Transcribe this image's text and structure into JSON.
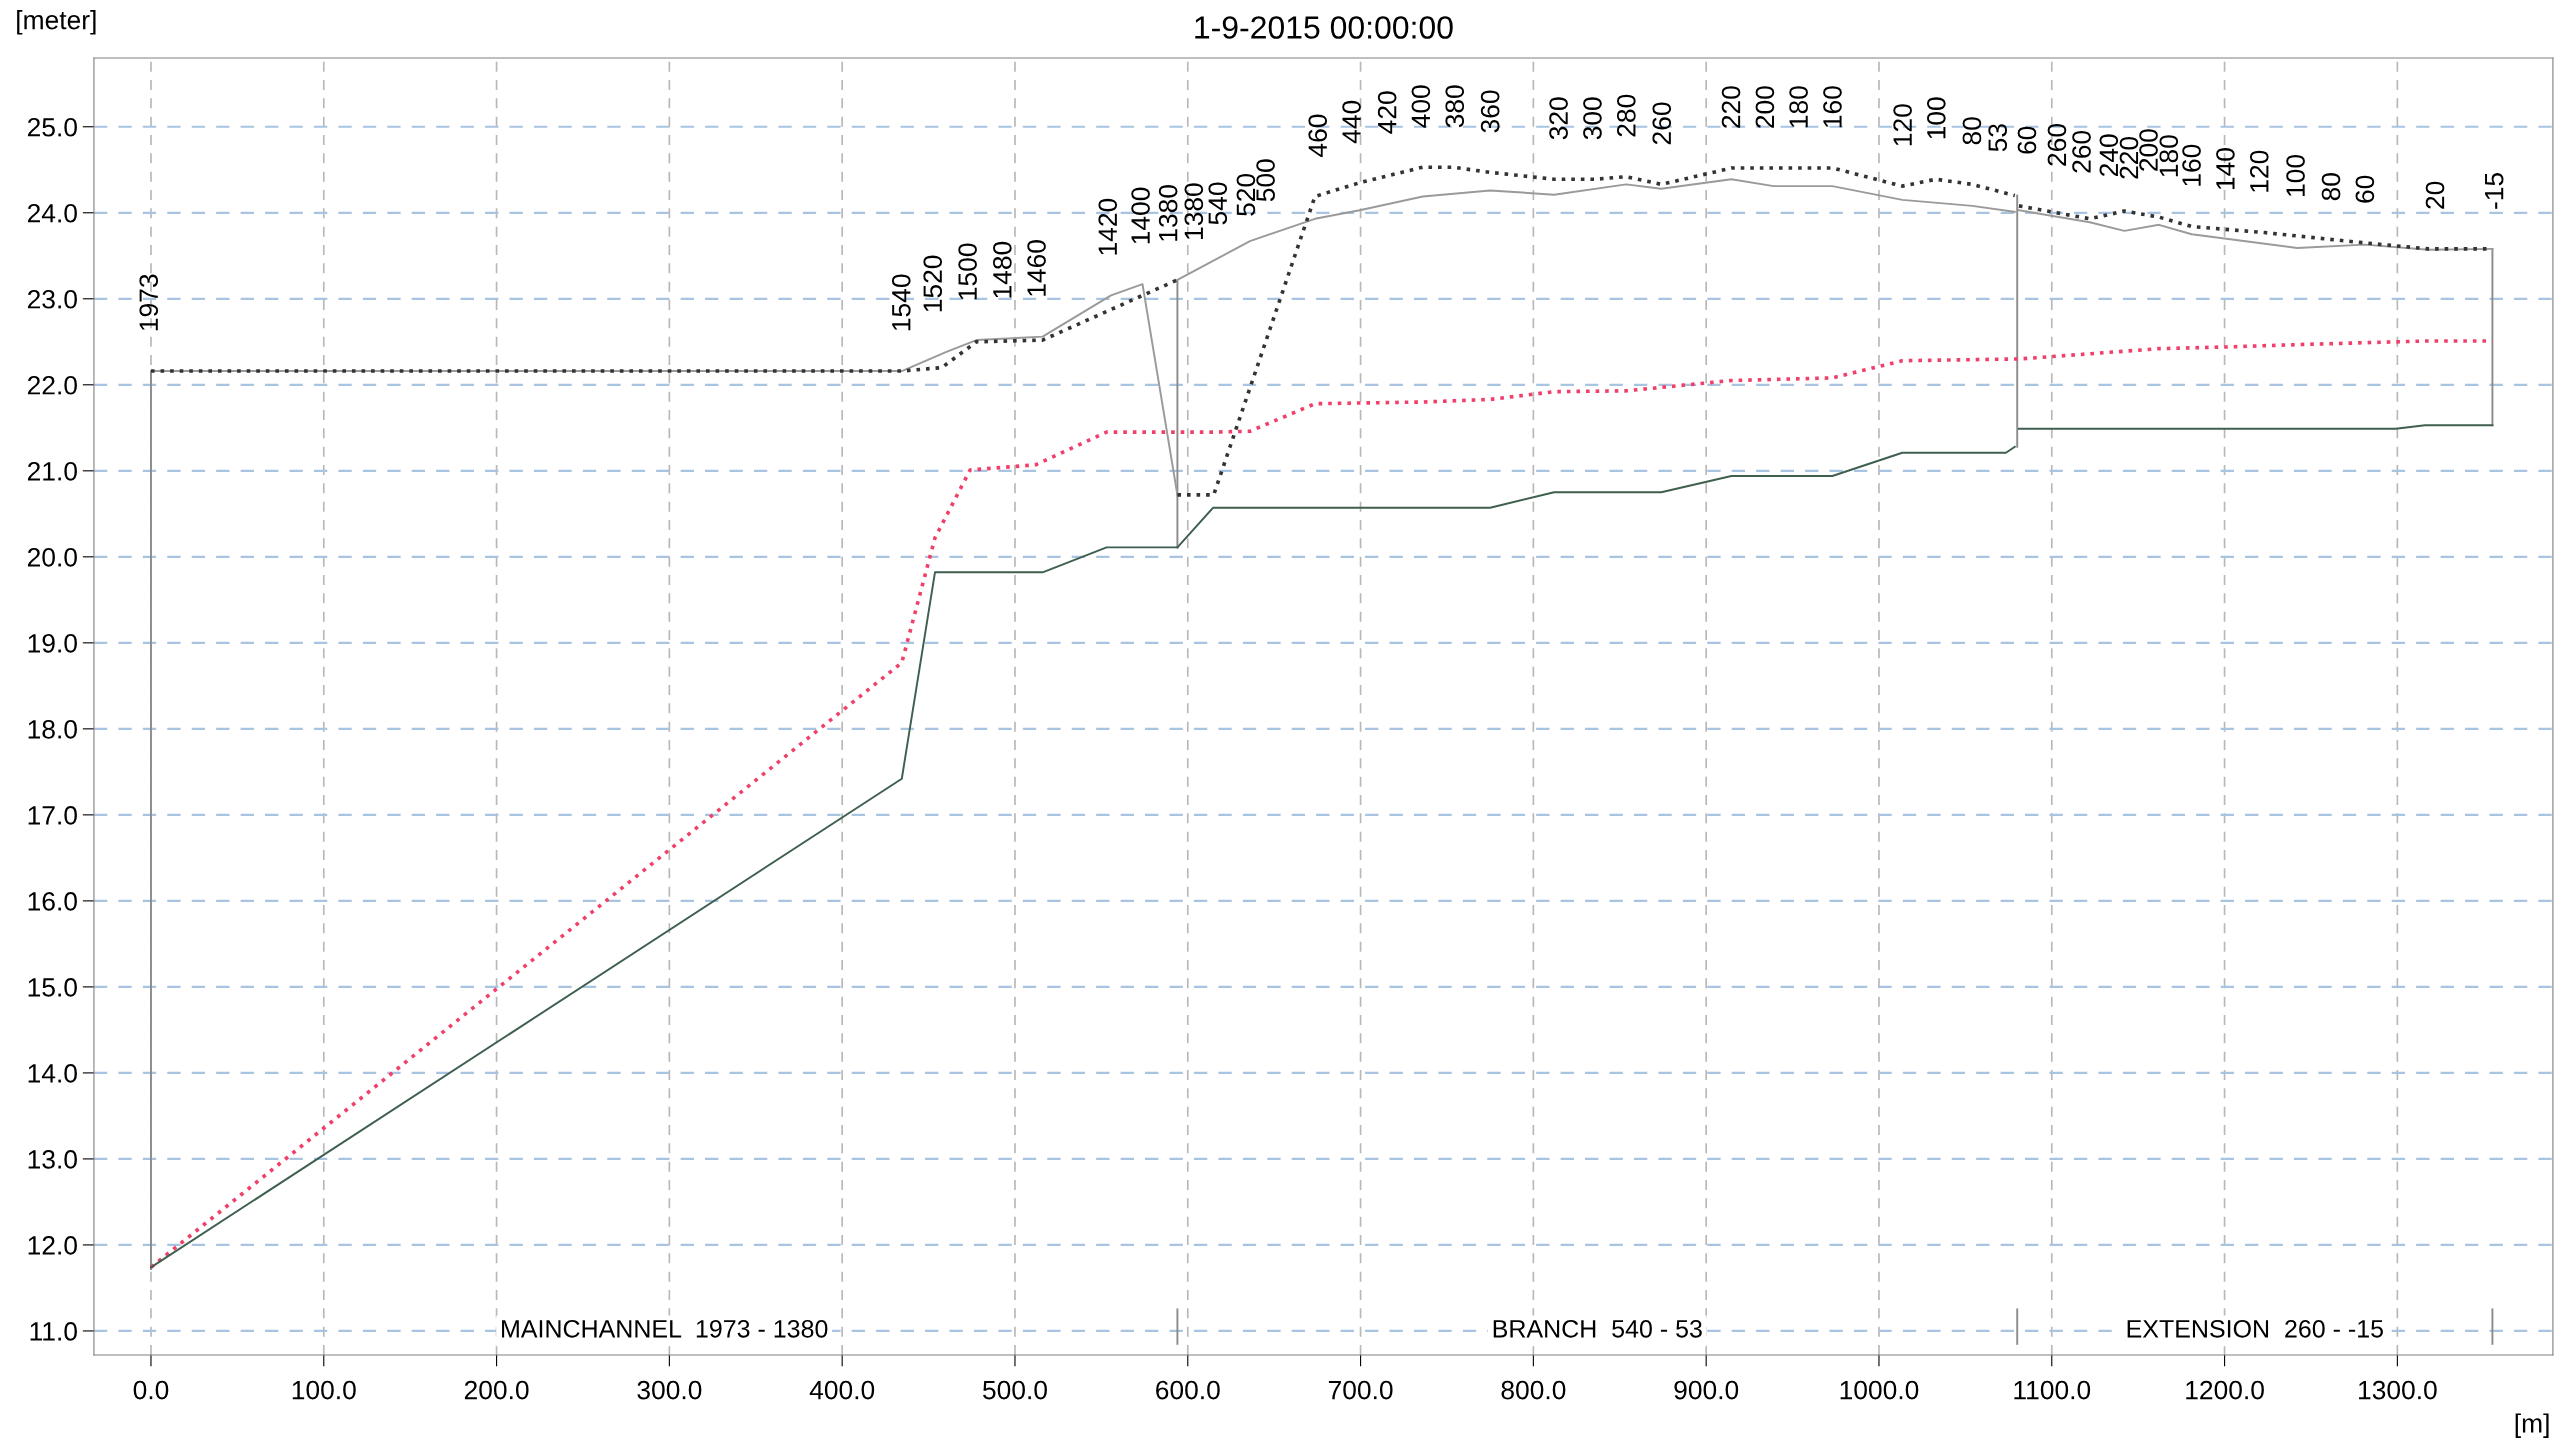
{
  "chart_data": {
    "type": "line",
    "title": "1-9-2015 00:00:00",
    "xlabel": "[m]",
    "ylabel": "[meter]",
    "xlim": [
      -33,
      1390
    ],
    "ylim": [
      10.72,
      25.8
    ],
    "xticks": [
      {
        "value": 0,
        "label": "0.0"
      },
      {
        "value": 100,
        "label": "100.0"
      },
      {
        "value": 200,
        "label": "200.0"
      },
      {
        "value": 300,
        "label": "300.0"
      },
      {
        "value": 400,
        "label": "400.0"
      },
      {
        "value": 500,
        "label": "500.0"
      },
      {
        "value": 600,
        "label": "600.0"
      },
      {
        "value": 700,
        "label": "700.0"
      },
      {
        "value": 800,
        "label": "800.0"
      },
      {
        "value": 900,
        "label": "900.0"
      },
      {
        "value": 1000,
        "label": "1000.0"
      },
      {
        "value": 1100,
        "label": "1100.0"
      },
      {
        "value": 1200,
        "label": "1200.0"
      },
      {
        "value": 1300,
        "label": "1300.0"
      }
    ],
    "yticks": [
      {
        "value": 11,
        "label": "11.0"
      },
      {
        "value": 12,
        "label": "12.0"
      },
      {
        "value": 13,
        "label": "13.0"
      },
      {
        "value": 14,
        "label": "14.0"
      },
      {
        "value": 15,
        "label": "15.0"
      },
      {
        "value": 16,
        "label": "16.0"
      },
      {
        "value": 17,
        "label": "17.0"
      },
      {
        "value": 18,
        "label": "18.0"
      },
      {
        "value": 19,
        "label": "19.0"
      },
      {
        "value": 20,
        "label": "20.0"
      },
      {
        "value": 21,
        "label": "21.0"
      },
      {
        "value": 22,
        "label": "22.0"
      },
      {
        "value": 23,
        "label": "23.0"
      },
      {
        "value": 24,
        "label": "24.0"
      },
      {
        "value": 25,
        "label": "25.0"
      }
    ],
    "grid": true,
    "marker": "none",
    "series": [
      {
        "color": "#8c8c8c",
        "line_style": "solid",
        "x": [
          0,
          0
        ],
        "values": [
          22.16,
          11.72
        ]
      },
      {
        "color": "#8c8c8c",
        "line_style": "solid",
        "x": [
          594,
          594
        ],
        "values": [
          23.22,
          20.11
        ]
      },
      {
        "color": "#8c8c8c",
        "line_style": "solid",
        "x": [
          1080,
          1080
        ],
        "values": [
          24.2,
          21.28
        ]
      },
      {
        "color": "#8c8c8c",
        "line_style": "solid",
        "x": [
          1355,
          1355
        ],
        "values": [
          23.58,
          21.53
        ]
      },
      {
        "color": "#8c8c8c",
        "line_style": "solid",
        "x": [
          594,
          594
        ],
        "values": [
          10.85,
          11.25
        ]
      },
      {
        "color": "#8c8c8c",
        "line_style": "solid",
        "x": [
          1080,
          1080
        ],
        "values": [
          10.85,
          11.25
        ]
      },
      {
        "color": "#8c8c8c",
        "line_style": "solid",
        "x": [
          1355,
          1355
        ],
        "values": [
          10.85,
          11.25
        ]
      },
      {
        "color": "#9a9a9a",
        "line_style": "solid",
        "x": [
          0,
          434.5,
          460,
          477.7,
          516,
          555.6,
          573.8,
          594
        ],
        "values": [
          22.16,
          22.16,
          22.38,
          22.52,
          22.56,
          23.04,
          23.17,
          20.72
        ]
      },
      {
        "color": "#9a9a9a",
        "line_style": "solid",
        "x": [
          594,
          636,
          673.6,
          699.5,
          736,
          775,
          812,
          853.7,
          874,
          914.6,
          939,
          973,
          1013.5,
          1054,
          1078.6
        ],
        "values": [
          23.22,
          23.67,
          23.93,
          24.03,
          24.19,
          24.26,
          24.21,
          24.33,
          24.28,
          24.39,
          24.31,
          24.31,
          24.15,
          24.08,
          24.01
        ]
      },
      {
        "color": "#9a9a9a",
        "line_style": "solid",
        "x": [
          1081,
          1122,
          1142,
          1162,
          1181,
          1242,
          1281,
          1318,
          1355
        ],
        "values": [
          24.03,
          23.89,
          23.79,
          23.86,
          23.75,
          23.59,
          23.63,
          23.57,
          23.58
        ]
      },
      {
        "color": "#333333",
        "line_style": "dotted",
        "x": [
          0,
          434.5,
          457.7,
          477.7,
          516,
          594
        ],
        "values": [
          22.16,
          22.16,
          22.2,
          22.5,
          22.52,
          23.22
        ]
      },
      {
        "color": "#333333",
        "line_style": "dotted",
        "x": [
          594,
          615,
          673.6,
          699.5,
          736,
          753.2,
          775,
          812,
          836,
          853.7,
          874,
          914.6,
          973.4,
          1013.5,
          1033,
          1054,
          1078.6
        ],
        "values": [
          20.72,
          20.72,
          24.19,
          24.35,
          24.53,
          24.53,
          24.47,
          24.39,
          24.39,
          24.42,
          24.33,
          24.52,
          24.52,
          24.31,
          24.39,
          24.33,
          24.2
        ]
      },
      {
        "color": "#333333",
        "line_style": "dotted",
        "x": [
          1081,
          1122,
          1142,
          1162,
          1181,
          1223,
          1281,
          1318,
          1355
        ],
        "values": [
          24.08,
          23.93,
          24.02,
          23.95,
          23.84,
          23.77,
          23.65,
          23.58,
          23.58
        ]
      },
      {
        "color": "#f0406a",
        "line_style": "dotted",
        "x": [
          0,
          434.5,
          453.7,
          474,
          512,
          553,
          594,
          615,
          636,
          673.6,
          736,
          775,
          812,
          853.7,
          874,
          914.6,
          973,
          1013.5,
          1078.6,
          1081,
          1162,
          1201,
          1247,
          1318,
          1355
        ],
        "values": [
          11.74,
          18.77,
          20.22,
          21.01,
          21.07,
          21.45,
          21.45,
          21.45,
          21.46,
          21.78,
          21.8,
          21.83,
          21.92,
          21.93,
          21.97,
          22.05,
          22.08,
          22.28,
          22.3,
          22.3,
          22.42,
          22.44,
          22.47,
          22.51,
          22.51
        ]
      },
      {
        "color": "#3f5f4f",
        "line_style": "solid",
        "x": [
          0,
          434.5,
          453.7,
          516,
          553,
          594
        ],
        "values": [
          11.74,
          17.42,
          19.82,
          19.82,
          20.11,
          20.11
        ]
      },
      {
        "color": "#3f5f4f",
        "line_style": "solid",
        "x": [
          594,
          614.6,
          636,
          775,
          812,
          874,
          914.6,
          973,
          1013.5,
          1073.5,
          1078.6
        ],
        "values": [
          20.11,
          20.57,
          20.57,
          20.57,
          20.75,
          20.75,
          20.94,
          20.94,
          21.21,
          21.21,
          21.28
        ]
      },
      {
        "color": "#3f5f4f",
        "line_style": "solid",
        "x": [
          1081,
          1299,
          1316,
          1355
        ],
        "values": [
          21.49,
          21.49,
          21.53,
          21.53
        ]
      }
    ],
    "annotations": [
      "MAINCHANNEL  1973 - 1380",
      "BRANCH  540 - 53",
      "EXTENSION  260 - -15",
      {
        "text": "1973",
        "x": 0,
        "y": 22.16
      },
      {
        "text": "1540",
        "x": 435.5,
        "y": 22.16
      },
      {
        "text": "1520",
        "x": 453.7,
        "y": 22.38
      },
      {
        "text": "1500",
        "x": 473.9,
        "y": 22.52
      },
      {
        "text": "1480",
        "x": 494,
        "y": 22.54
      },
      {
        "text": "1460",
        "x": 513.8,
        "y": 22.56
      },
      {
        "text": "1420",
        "x": 555,
        "y": 23.04
      },
      {
        "text": "1400",
        "x": 574,
        "y": 23.17
      },
      {
        "text": "1380",
        "x": 582.6,
        "y": 23.2
      },
      {
        "text": "1380",
        "x": 594,
        "y": 23.22
      },
      {
        "text": "540",
        "x": 608,
        "y": 23.4
      },
      {
        "text": "520",
        "x": 615.7,
        "y": 23.5
      },
      {
        "text": "500",
        "x": 636,
        "y": 23.67
      },
      {
        "text": "460",
        "x": 676.5,
        "y": 24.19
      },
      {
        "text": "440",
        "x": 696.1,
        "y": 24.35
      },
      {
        "text": "420",
        "x": 716.7,
        "y": 24.46
      },
      {
        "text": "400",
        "x": 736.2,
        "y": 24.53
      },
      {
        "text": "380",
        "x": 755.8,
        "y": 24.53
      },
      {
        "text": "360",
        "x": 776.3,
        "y": 24.47
      },
      {
        "text": "320",
        "x": 815.9,
        "y": 24.39
      },
      {
        "text": "300",
        "x": 835.5,
        "y": 24.39
      },
      {
        "text": "280",
        "x": 855.1,
        "y": 24.42
      },
      {
        "text": "260",
        "x": 875.6,
        "y": 24.33
      },
      {
        "text": "220",
        "x": 915.7,
        "y": 24.52
      },
      {
        "text": "200",
        "x": 935.3,
        "y": 24.52
      },
      {
        "text": "180",
        "x": 954.8,
        "y": 24.52
      },
      {
        "text": "160",
        "x": 974.4,
        "y": 24.52
      },
      {
        "text": "120",
        "x": 1015,
        "y": 24.31
      },
      {
        "text": "100",
        "x": 1034.5,
        "y": 24.39
      },
      {
        "text": "80",
        "x": 1055.1,
        "y": 24.33
      },
      {
        "text": "53",
        "x": 1070,
        "y": 24.25
      },
      {
        "text": "60",
        "x": 1076,
        "y": 24.22
      },
      {
        "text": "260",
        "x": 1081,
        "y": 24.08
      },
      {
        "text": "260",
        "x": 1094,
        "y": 24.0
      },
      {
        "text": "240",
        "x": 1103,
        "y": 23.96
      },
      {
        "text": "220",
        "x": 1122.6,
        "y": 23.93
      },
      {
        "text": "200",
        "x": 1143.1,
        "y": 24.02
      },
      {
        "text": "180",
        "x": 1162.6,
        "y": 23.95
      },
      {
        "text": "160",
        "x": 1182.2,
        "y": 23.84
      },
      {
        "text": "140",
        "x": 1201.8,
        "y": 23.8
      },
      {
        "text": "120",
        "x": 1221.4,
        "y": 23.77
      },
      {
        "text": "100",
        "x": 1242.4,
        "y": 23.72
      },
      {
        "text": "80",
        "x": 1262.9,
        "y": 23.68
      },
      {
        "text": "60",
        "x": 1282.5,
        "y": 23.65
      },
      {
        "text": "20",
        "x": 1323.1,
        "y": 23.58
      },
      {
        "text": "-15",
        "x": 1357.3,
        "y": 23.58
      }
    ]
  }
}
